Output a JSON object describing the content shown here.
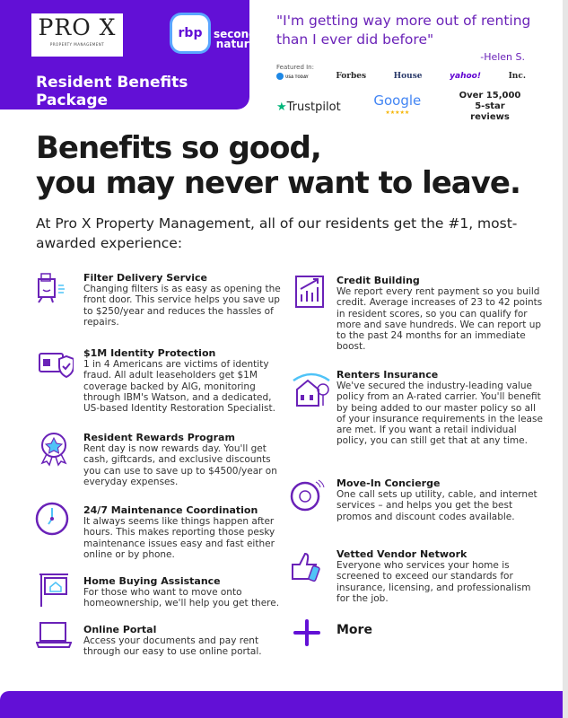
{
  "header": {
    "logo_name": "PRO X",
    "logo_sub": "PROPERTY MANAGEMENT",
    "rbp_logo": "rbp",
    "rbp_by": "by",
    "rbp_brand": "second nature",
    "title": "Resident Benefits Package"
  },
  "testimonial": {
    "quote": "\"I'm getting way more out of renting than I ever did before\"",
    "author": "-Helen S."
  },
  "featured": {
    "label": "Featured In:",
    "outlets": [
      "USA TODAY",
      "Forbes",
      "House",
      "yahoo!",
      "Inc."
    ],
    "trustpilot": "Trustpilot",
    "google": "Google",
    "google_stars": "★★★★★",
    "reviews": "Over 15,000 5-star reviews"
  },
  "headline": {
    "line1": "Benefits so good,",
    "line2": "you may never want to leave."
  },
  "intro": "At Pro X Property Management, all of our residents get the #1, most-awarded experience:",
  "benefits_left": [
    {
      "title": "Filter Delivery Service",
      "text": "Changing filters is as easy as opening the front door. This service helps you save up to $250/year and reduces the hassles of repairs."
    },
    {
      "title": "$1M Identity Protection",
      "text": "1 in 4 Americans are victims of identity fraud. All adult leaseholders get $1M coverage backed by AIG, monitoring through IBM's Watson, and a dedicated, US-based Identity Restoration Specialist."
    },
    {
      "title": "Resident Rewards Program",
      "text": "Rent day is now rewards day. You'll get cash, giftcards, and exclusive discounts you can use to save up to $4500/year on everyday expenses."
    },
    {
      "title": "24/7 Maintenance Coordination",
      "text": "It always seems like things happen after hours. This makes reporting those pesky maintenance issues easy and fast either online or by phone."
    },
    {
      "title": "Home Buying Assistance",
      "text": "For those who want to move onto homeownership, we'll help you get there."
    },
    {
      "title": "Online Portal",
      "text": "Access your documents and pay rent through our easy to use online portal."
    }
  ],
  "benefits_right": [
    {
      "title": "Credit Building",
      "text": "We report every rent payment so you build credit. Average increases of 23 to 42 points in resident scores, so you can qualify for more and save hundreds. We can report up to the past 24 months for an immediate boost."
    },
    {
      "title": "Renters Insurance",
      "text": "We've secured the industry-leading value policy from an A-rated carrier. You'll benefit by being added to our master policy so all of your insurance requirements in the lease are met. If you want a retail individual policy, you can still get that at any time."
    },
    {
      "title": "Move-In Concierge",
      "text": "One call sets up utility, cable, and internet services – and helps you get the best promos and discount codes available."
    },
    {
      "title": "Vetted Vendor Network",
      "text": "Everyone who services your home is screened to exceed our standards for insurance, licensing, and professionalism for the job."
    }
  ],
  "more_label": "More",
  "colors": {
    "brand": "#6210d6",
    "quote": "#6a22b8",
    "accent": "#4fc3f7"
  }
}
